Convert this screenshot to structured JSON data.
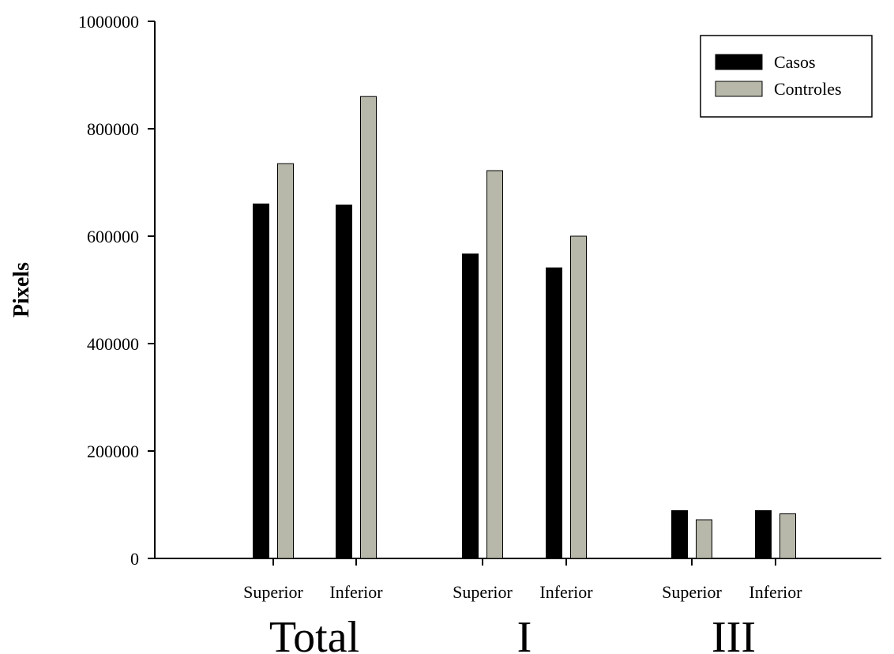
{
  "chart_data": {
    "type": "bar",
    "title": "",
    "xlabel": "",
    "ylabel": "Pixels",
    "ylim": [
      0,
      1000000
    ],
    "yticks": [
      "0",
      "200000",
      "400000",
      "600000",
      "800000",
      "1000000"
    ],
    "groups": [
      "Total",
      "I",
      "III"
    ],
    "categories": [
      "Superior",
      "Inferior",
      "Superior",
      "Inferior",
      "Superior",
      "Inferior"
    ],
    "series": [
      {
        "name": "Casos",
        "color": "#000000",
        "values": [
          660000,
          658000,
          567000,
          541000,
          89000,
          89000
        ]
      },
      {
        "name": "Controles",
        "color": "#b7b7aa",
        "values": [
          735000,
          860000,
          722000,
          600000,
          72000,
          83000
        ]
      }
    ],
    "legend_position": "top-right",
    "grid": false
  }
}
